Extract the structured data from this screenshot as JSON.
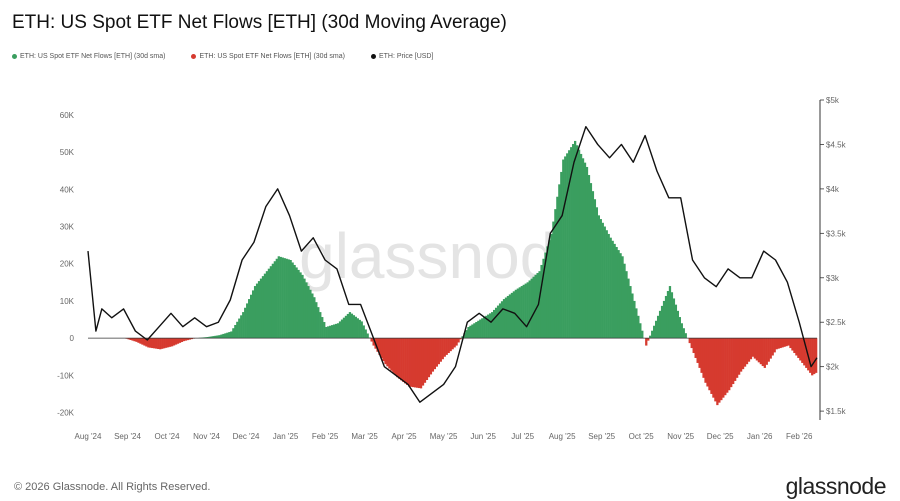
{
  "title": "ETH: US Spot ETF Net Flows [ETH] (30d Moving Average)",
  "legend": [
    {
      "label": "ETH: US Spot ETF Net Flows [ETH] (30d sma)",
      "color": "#3a9e5f"
    },
    {
      "label": "ETH: US Spot ETF Net Flows [ETH] (30d sma)",
      "color": "#d63a2f"
    },
    {
      "label": "ETH: Price [USD]",
      "color": "#111111"
    }
  ],
  "watermark": "glassnode",
  "footer": "© 2026 Glassnode. All Rights Reserved.",
  "brand": "glassnode",
  "chart_data": {
    "type": "area",
    "title": "ETH: US Spot ETF Net Flows [ETH] (30d Moving Average)",
    "x_ticks": [
      "Aug '24",
      "Sep '24",
      "Oct '24",
      "Nov '24",
      "Dec '24",
      "Jan '25",
      "Feb '25",
      "Mar '25",
      "Apr '25",
      "May '25",
      "Jun '25",
      "Jul '25",
      "Aug '25",
      "Sep '25",
      "Oct '25",
      "Nov '25",
      "Dec '25",
      "Jan '26",
      "Feb '26"
    ],
    "y_left_ticks": [
      "60K",
      "50K",
      "40K",
      "30K",
      "20K",
      "10K",
      "0",
      "-10K",
      "-20K"
    ],
    "y_right_ticks": [
      "$5k",
      "$4.5k",
      "$4k",
      "$3.5k",
      "$3k",
      "$2.5k",
      "$2k",
      "$1.5k"
    ],
    "y_left_range": [
      -22000,
      64000
    ],
    "y_right_range": [
      1400,
      5000
    ],
    "x_range": [
      0,
      18.45
    ],
    "grid": false,
    "legend_position": "top-left",
    "positive_color": "#3a9e5f",
    "negative_color": "#d63a2f",
    "price_color": "#111111",
    "series": [
      {
        "name": "ETH: US Spot ETF Net Flows [ETH] (30d sma)",
        "unit": "ETH",
        "points": [
          [
            0.0,
            0
          ],
          [
            0.3,
            0
          ],
          [
            0.6,
            0
          ],
          [
            0.9,
            0
          ],
          [
            1.2,
            -1000
          ],
          [
            1.5,
            -2500
          ],
          [
            1.8,
            -3000
          ],
          [
            2.1,
            -2200
          ],
          [
            2.4,
            -800
          ],
          [
            2.7,
            0
          ],
          [
            3.0,
            300
          ],
          [
            3.3,
            800
          ],
          [
            3.6,
            1800
          ],
          [
            3.9,
            7000
          ],
          [
            4.2,
            14000
          ],
          [
            4.5,
            18000
          ],
          [
            4.8,
            22000
          ],
          [
            5.1,
            21000
          ],
          [
            5.4,
            17000
          ],
          [
            5.7,
            11000
          ],
          [
            6.0,
            3000
          ],
          [
            6.3,
            4000
          ],
          [
            6.6,
            7000
          ],
          [
            6.9,
            4500
          ],
          [
            7.2,
            -2000
          ],
          [
            7.5,
            -7000
          ],
          [
            7.8,
            -10500
          ],
          [
            8.1,
            -13000
          ],
          [
            8.4,
            -13500
          ],
          [
            8.7,
            -9000
          ],
          [
            9.0,
            -5000
          ],
          [
            9.3,
            -2000
          ],
          [
            9.6,
            3000
          ],
          [
            9.9,
            5000
          ],
          [
            10.2,
            7000
          ],
          [
            10.5,
            10500
          ],
          [
            10.8,
            13000
          ],
          [
            11.1,
            15000
          ],
          [
            11.4,
            18000
          ],
          [
            11.7,
            28000
          ],
          [
            12.0,
            48000
          ],
          [
            12.3,
            53000
          ],
          [
            12.6,
            46000
          ],
          [
            12.9,
            33000
          ],
          [
            13.2,
            27000
          ],
          [
            13.5,
            22000
          ],
          [
            13.8,
            10000
          ],
          [
            14.1,
            -2000
          ],
          [
            14.4,
            6000
          ],
          [
            14.7,
            14000
          ],
          [
            15.0,
            4000
          ],
          [
            15.3,
            -4000
          ],
          [
            15.6,
            -12000
          ],
          [
            15.9,
            -18000
          ],
          [
            16.2,
            -14000
          ],
          [
            16.5,
            -9000
          ],
          [
            16.8,
            -5000
          ],
          [
            17.1,
            -8000
          ],
          [
            17.4,
            -3000
          ],
          [
            17.7,
            -2000
          ],
          [
            18.0,
            -6000
          ],
          [
            18.3,
            -10000
          ],
          [
            18.45,
            -9000
          ]
        ]
      },
      {
        "name": "ETH: Price [USD]",
        "unit": "USD",
        "points": [
          [
            0.0,
            3300
          ],
          [
            0.2,
            2400
          ],
          [
            0.35,
            2650
          ],
          [
            0.6,
            2550
          ],
          [
            0.9,
            2650
          ],
          [
            1.2,
            2400
          ],
          [
            1.5,
            2300
          ],
          [
            1.8,
            2450
          ],
          [
            2.1,
            2600
          ],
          [
            2.4,
            2450
          ],
          [
            2.7,
            2550
          ],
          [
            3.0,
            2450
          ],
          [
            3.3,
            2500
          ],
          [
            3.6,
            2750
          ],
          [
            3.9,
            3200
          ],
          [
            4.2,
            3400
          ],
          [
            4.5,
            3800
          ],
          [
            4.8,
            4000
          ],
          [
            5.1,
            3700
          ],
          [
            5.4,
            3300
          ],
          [
            5.7,
            3450
          ],
          [
            6.0,
            3200
          ],
          [
            6.3,
            3100
          ],
          [
            6.6,
            2700
          ],
          [
            6.9,
            2700
          ],
          [
            7.2,
            2350
          ],
          [
            7.5,
            2000
          ],
          [
            7.8,
            1900
          ],
          [
            8.1,
            1800
          ],
          [
            8.4,
            1600
          ],
          [
            8.7,
            1700
          ],
          [
            9.0,
            1800
          ],
          [
            9.3,
            2000
          ],
          [
            9.6,
            2500
          ],
          [
            9.9,
            2600
          ],
          [
            10.2,
            2500
          ],
          [
            10.5,
            2650
          ],
          [
            10.8,
            2600
          ],
          [
            11.1,
            2450
          ],
          [
            11.4,
            2700
          ],
          [
            11.7,
            3500
          ],
          [
            12.0,
            3700
          ],
          [
            12.3,
            4300
          ],
          [
            12.6,
            4700
          ],
          [
            12.9,
            4500
          ],
          [
            13.2,
            4350
          ],
          [
            13.5,
            4500
          ],
          [
            13.8,
            4300
          ],
          [
            14.1,
            4600
          ],
          [
            14.4,
            4200
          ],
          [
            14.7,
            3900
          ],
          [
            15.0,
            3900
          ],
          [
            15.3,
            3200
          ],
          [
            15.6,
            3000
          ],
          [
            15.9,
            2900
          ],
          [
            16.2,
            3100
          ],
          [
            16.5,
            3000
          ],
          [
            16.8,
            3000
          ],
          [
            17.1,
            3300
          ],
          [
            17.4,
            3200
          ],
          [
            17.7,
            2950
          ],
          [
            18.0,
            2500
          ],
          [
            18.3,
            2000
          ],
          [
            18.45,
            2100
          ]
        ]
      }
    ]
  }
}
